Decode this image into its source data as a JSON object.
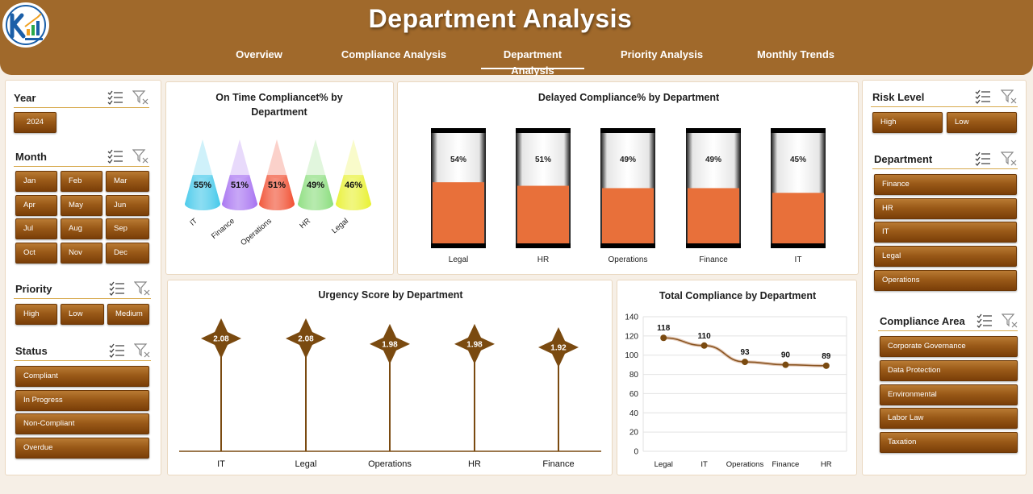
{
  "header": {
    "title": "Department Analysis"
  },
  "tabs": [
    {
      "label": "Overview",
      "active": false
    },
    {
      "label": "Compliance Analysis",
      "active": false
    },
    {
      "label": "Department Analysis",
      "active": true
    },
    {
      "label": "Priority Analysis",
      "active": false
    },
    {
      "label": "Monthly Trends",
      "active": false
    }
  ],
  "left_slicers": {
    "year": {
      "title": "Year",
      "items": [
        "2024"
      ]
    },
    "month": {
      "title": "Month",
      "items": [
        "Jan",
        "Feb",
        "Mar",
        "Apr",
        "May",
        "Jun",
        "Jul",
        "Aug",
        "Sep",
        "Oct",
        "Nov",
        "Dec"
      ]
    },
    "priority": {
      "title": "Priority",
      "items": [
        "High",
        "Low",
        "Medium"
      ]
    },
    "status": {
      "title": "Status",
      "items": [
        "Compliant",
        "In Progress",
        "Non-Compliant",
        "Overdue"
      ]
    }
  },
  "right_slicers": {
    "risk_level": {
      "title": "Risk Level",
      "items": [
        "High",
        "Low"
      ]
    },
    "department": {
      "title": "Department",
      "items": [
        "Finance",
        "HR",
        "IT",
        "Legal",
        "Operations"
      ]
    },
    "compliance_area": {
      "title": "Compliance Area",
      "items": [
        "Corporate Governance",
        "Data Protection",
        "Environmental",
        "Labor Law",
        "Taxation"
      ]
    }
  },
  "colors": {
    "brown": "#a0692b",
    "button": "#8a4d12",
    "orange_fill": "#e8703a",
    "marker": "#7a4a10"
  },
  "chart_data": [
    {
      "id": "on_time",
      "type": "bar",
      "title": "On Time Compliancet% by Department",
      "categories": [
        "IT",
        "Finance",
        "Operations",
        "HR",
        "Legal"
      ],
      "values": [
        55,
        51,
        51,
        49,
        46
      ],
      "labels": [
        "55%",
        "51%",
        "51%",
        "49%",
        "46%"
      ],
      "colors": [
        "#3ec7ea",
        "#a36cf0",
        "#f0482a",
        "#86dc78",
        "#e8f02a"
      ]
    },
    {
      "id": "delayed",
      "type": "bar",
      "title": "Delayed Compliance% by Department",
      "categories": [
        "Legal",
        "HR",
        "Operations",
        "Finance",
        "IT"
      ],
      "values": [
        54,
        51,
        49,
        49,
        45
      ],
      "labels": [
        "54%",
        "51%",
        "49%",
        "49%",
        "45%"
      ],
      "ylim": [
        0,
        100
      ]
    },
    {
      "id": "urgency",
      "type": "bar",
      "title": "Urgency Score by Department",
      "categories": [
        "IT",
        "Legal",
        "Operations",
        "HR",
        "Finance"
      ],
      "values": [
        2.08,
        2.08,
        1.98,
        1.98,
        1.92
      ],
      "labels": [
        "2.08",
        "2.08",
        "1.98",
        "1.98",
        "1.92"
      ]
    },
    {
      "id": "total",
      "type": "line",
      "title": "Total Compliance by Department",
      "categories": [
        "Legal",
        "IT",
        "Operations",
        "Finance",
        "HR"
      ],
      "values": [
        118,
        110,
        93,
        90,
        89
      ],
      "labels": [
        "118",
        "110",
        "93",
        "90",
        "89"
      ],
      "ylim": [
        0,
        140
      ],
      "yticks": [
        "0",
        "20",
        "40",
        "60",
        "80",
        "100",
        "120",
        "140"
      ],
      "grid": true
    }
  ]
}
